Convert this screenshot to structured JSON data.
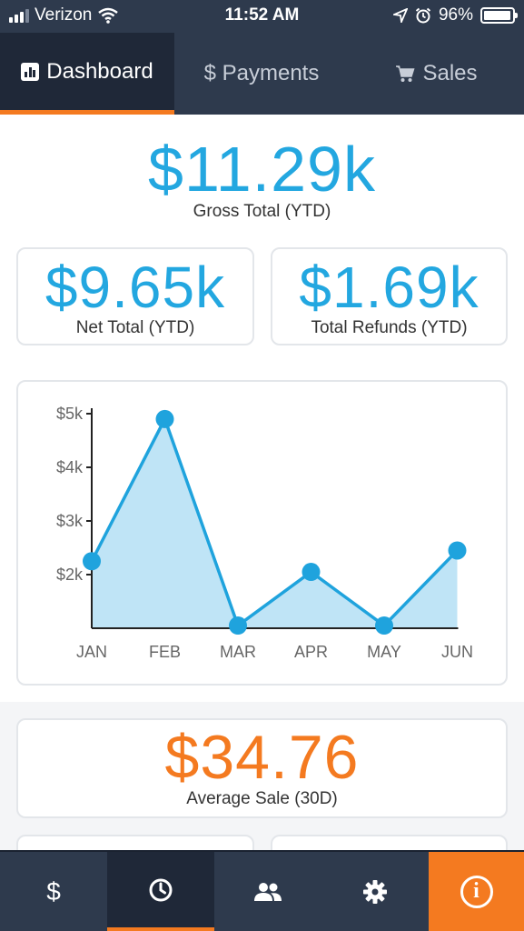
{
  "status_bar": {
    "carrier": "Verizon",
    "time": "11:52 AM",
    "battery_percent": "96%",
    "battery_level": 0.96
  },
  "top_tabs": [
    {
      "label": "Dashboard",
      "icon": "bar-chart-icon",
      "active": true
    },
    {
      "label": "$ Payments",
      "icon": "dollar-icon",
      "active": false
    },
    {
      "label": "Sales",
      "icon": "cart-icon",
      "active": false
    }
  ],
  "summary": {
    "gross_value": "$11.29k",
    "gross_caption": "Gross Total (YTD)",
    "net_value": "$9.65k",
    "net_caption": "Net Total (YTD)",
    "refunds_value": "$1.69k",
    "refunds_caption": "Total Refunds (YTD)",
    "avg_value": "$34.76",
    "avg_caption": "Average Sale (30D)"
  },
  "chart_data": {
    "type": "area",
    "categories": [
      "JAN",
      "FEB",
      "MAR",
      "APR",
      "MAY",
      "JUN"
    ],
    "values": [
      2250,
      4900,
      1050,
      2050,
      1050,
      2450
    ],
    "y_ticks": [
      {
        "value": 2000,
        "label": "$2k"
      },
      {
        "value": 3000,
        "label": "$3k"
      },
      {
        "value": 4000,
        "label": "$4k"
      },
      {
        "value": 5000,
        "label": "$5k"
      }
    ],
    "ylim": [
      1000,
      5000
    ],
    "colors": {
      "line": "#1fa3dd",
      "fill": "#bfe4f6",
      "axis": "#222222"
    }
  },
  "bottom_nav": [
    {
      "icon": "dollar-icon",
      "glyph": "$",
      "active": false
    },
    {
      "icon": "clock-icon",
      "glyph": "",
      "active": true
    },
    {
      "icon": "people-icon",
      "glyph": "",
      "active": false
    },
    {
      "icon": "gear-icon",
      "glyph": "",
      "active": false
    },
    {
      "icon": "info-icon",
      "glyph": "i",
      "active": false
    }
  ],
  "colors": {
    "accent": "#f47a20",
    "primary": "#23a7e0",
    "nav_bg": "#2e3a4d"
  }
}
